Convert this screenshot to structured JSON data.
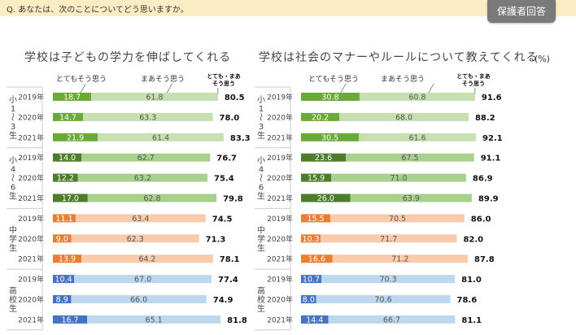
{
  "header": {
    "question": "Q. あなたは、次のことについてどう思いますか。",
    "badge": "保護者回答"
  },
  "unit_label": "(%)",
  "colors": {
    "header_bg": "#fbecc4",
    "badge_bg": "#7a7a7a",
    "elem13_strong": "#6aaa3a",
    "elem13_light": "#c6e0b0",
    "elem46_strong": "#4b7d2a",
    "elem46_light": "#a9d18e",
    "jhs_strong": "#ed7d31",
    "jhs_light": "#f8cbad",
    "hs_strong": "#4472c4",
    "hs_light": "#bdd7ee"
  },
  "chart_data": [
    {
      "type": "bar",
      "orientation": "horizontal-stacked",
      "title": "学校は子どもの学力を伸ばしてくれる",
      "legend": [
        "とてもそう思う",
        "まあそう思う",
        "とても・まあ そう思う"
      ],
      "groups": [
        {
          "name": "小1〜3生",
          "palette": "elem13",
          "rows": [
            {
              "year": "2019年",
              "strong": 18.7,
              "some": 61.8,
              "total": 80.5
            },
            {
              "year": "2020年",
              "strong": 14.7,
              "some": 63.3,
              "total": 78.0
            },
            {
              "year": "2021年",
              "strong": 21.9,
              "some": 61.4,
              "total": 83.3
            }
          ]
        },
        {
          "name": "小4〜6生",
          "palette": "elem46",
          "rows": [
            {
              "year": "2019年",
              "strong": 14.0,
              "some": 62.7,
              "total": 76.7
            },
            {
              "year": "2020年",
              "strong": 12.2,
              "some": 63.2,
              "total": 75.4
            },
            {
              "year": "2021年",
              "strong": 17.0,
              "some": 62.8,
              "total": 79.8
            }
          ]
        },
        {
          "name": "中学生",
          "palette": "jhs",
          "rows": [
            {
              "year": "2019年",
              "strong": 11.1,
              "some": 63.4,
              "total": 74.5
            },
            {
              "year": "2020年",
              "strong": 9.0,
              "some": 62.3,
              "total": 71.3
            },
            {
              "year": "2021年",
              "strong": 13.9,
              "some": 64.2,
              "total": 78.1
            }
          ]
        },
        {
          "name": "高校生",
          "palette": "hs",
          "rows": [
            {
              "year": "2019年",
              "strong": 10.4,
              "some": 67.0,
              "total": 77.4
            },
            {
              "year": "2020年",
              "strong": 8.9,
              "some": 66.0,
              "total": 74.9
            },
            {
              "year": "2021年",
              "strong": 16.7,
              "some": 65.1,
              "total": 81.8
            }
          ]
        }
      ]
    },
    {
      "type": "bar",
      "orientation": "horizontal-stacked",
      "title": "学校は社会のマナーやルールについて教えてくれる",
      "legend": [
        "とてもそう思う",
        "まあそう思う",
        "とても・まあ そう思う"
      ],
      "groups": [
        {
          "name": "小1〜3生",
          "palette": "elem13",
          "rows": [
            {
              "year": "2019年",
              "strong": 30.8,
              "some": 60.8,
              "total": 91.6
            },
            {
              "year": "2020年",
              "strong": 20.2,
              "some": 68.0,
              "total": 88.2
            },
            {
              "year": "2021年",
              "strong": 30.5,
              "some": 61.6,
              "total": 92.1
            }
          ]
        },
        {
          "name": "小4〜6生",
          "palette": "elem46",
          "rows": [
            {
              "year": "2019年",
              "strong": 23.6,
              "some": 67.5,
              "total": 91.1
            },
            {
              "year": "2020年",
              "strong": 15.9,
              "some": 71.0,
              "total": 86.9
            },
            {
              "year": "2021年",
              "strong": 26.0,
              "some": 63.9,
              "total": 89.9
            }
          ]
        },
        {
          "name": "中学生",
          "palette": "jhs",
          "rows": [
            {
              "year": "2019年",
              "strong": 15.5,
              "some": 70.5,
              "total": 86.0
            },
            {
              "year": "2020年",
              "strong": 10.3,
              "some": 71.7,
              "total": 82.0
            },
            {
              "year": "2021年",
              "strong": 16.6,
              "some": 71.2,
              "total": 87.8
            }
          ]
        },
        {
          "name": "高校生",
          "palette": "hs",
          "rows": [
            {
              "year": "2019年",
              "strong": 10.7,
              "some": 70.3,
              "total": 81.0
            },
            {
              "year": "2020年",
              "strong": 8.0,
              "some": 70.6,
              "total": 78.6
            },
            {
              "year": "2021年",
              "strong": 14.4,
              "some": 66.7,
              "total": 81.1
            }
          ]
        }
      ]
    }
  ]
}
